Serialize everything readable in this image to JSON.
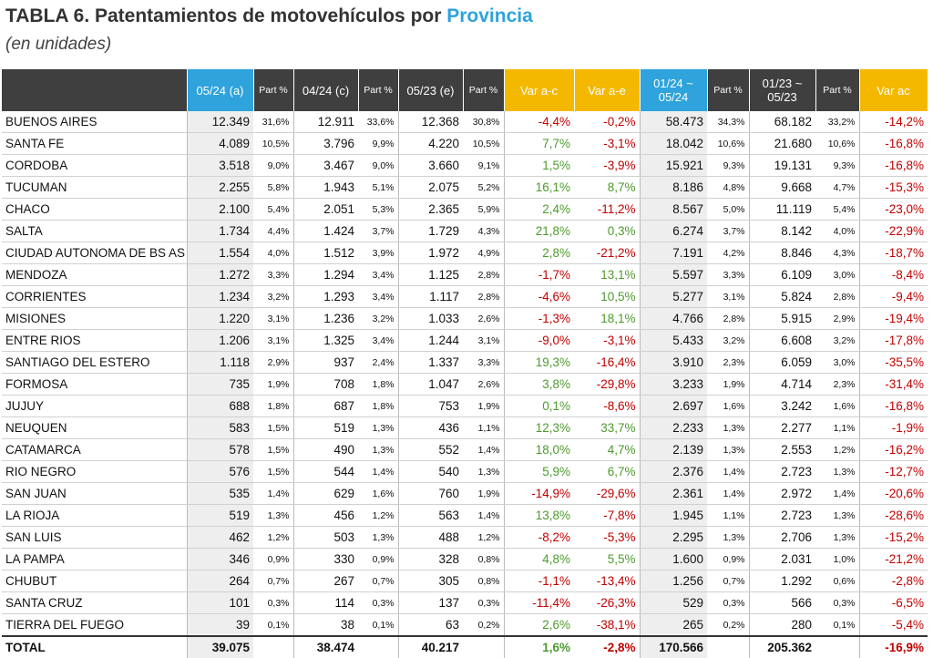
{
  "header": {
    "title": "TABLA 6. Patentamientos de motovehículos por ",
    "title_highlight": "Provincia",
    "subtitle": "(en unidades)"
  },
  "table": {
    "columns": [
      null,
      "05/24 (a)",
      "Part %",
      "04/24 (c)",
      "Part %",
      "05/23 (e)",
      "Part %",
      "Var a-c",
      "Var a-e",
      "01/24 ~ 05/24",
      "Part %",
      "01/23 ~ 05/23",
      "Part %",
      "Var ac"
    ],
    "rows": [
      [
        "BUENOS AIRES",
        "12.349",
        "31,6%",
        "12.911",
        "33,6%",
        "12.368",
        "30,8%",
        "-4,4%",
        "-0,2%",
        "58.473",
        "34,3%",
        "68.182",
        "33,2%",
        "-14,2%"
      ],
      [
        "SANTA FE",
        "4.089",
        "10,5%",
        "3.796",
        "9,9%",
        "4.220",
        "10,5%",
        "7,7%",
        "-3,1%",
        "18.042",
        "10,6%",
        "21.680",
        "10,6%",
        "-16,8%"
      ],
      [
        "CORDOBA",
        "3.518",
        "9,0%",
        "3.467",
        "9,0%",
        "3.660",
        "9,1%",
        "1,5%",
        "-3,9%",
        "15.921",
        "9,3%",
        "19.131",
        "9,3%",
        "-16,8%"
      ],
      [
        "TUCUMAN",
        "2.255",
        "5,8%",
        "1.943",
        "5,1%",
        "2.075",
        "5,2%",
        "16,1%",
        "8,7%",
        "8.186",
        "4,8%",
        "9.668",
        "4,7%",
        "-15,3%"
      ],
      [
        "CHACO",
        "2.100",
        "5,4%",
        "2.051",
        "5,3%",
        "2.365",
        "5,9%",
        "2,4%",
        "-11,2%",
        "8.567",
        "5,0%",
        "11.119",
        "5,4%",
        "-23,0%"
      ],
      [
        "SALTA",
        "1.734",
        "4,4%",
        "1.424",
        "3,7%",
        "1.729",
        "4,3%",
        "21,8%",
        "0,3%",
        "6.274",
        "3,7%",
        "8.142",
        "4,0%",
        "-22,9%"
      ],
      [
        "CIUDAD AUTONOMA DE BS AS",
        "1.554",
        "4,0%",
        "1.512",
        "3,9%",
        "1.972",
        "4,9%",
        "2,8%",
        "-21,2%",
        "7.191",
        "4,2%",
        "8.846",
        "4,3%",
        "-18,7%"
      ],
      [
        "MENDOZA",
        "1.272",
        "3,3%",
        "1.294",
        "3,4%",
        "1.125",
        "2,8%",
        "-1,7%",
        "13,1%",
        "5.597",
        "3,3%",
        "6.109",
        "3,0%",
        "-8,4%"
      ],
      [
        "CORRIENTES",
        "1.234",
        "3,2%",
        "1.293",
        "3,4%",
        "1.117",
        "2,8%",
        "-4,6%",
        "10,5%",
        "5.277",
        "3,1%",
        "5.824",
        "2,8%",
        "-9,4%"
      ],
      [
        "MISIONES",
        "1.220",
        "3,1%",
        "1.236",
        "3,2%",
        "1.033",
        "2,6%",
        "-1,3%",
        "18,1%",
        "4.766",
        "2,8%",
        "5.915",
        "2,9%",
        "-19,4%"
      ],
      [
        "ENTRE RIOS",
        "1.206",
        "3,1%",
        "1.325",
        "3,4%",
        "1.244",
        "3,1%",
        "-9,0%",
        "-3,1%",
        "5.433",
        "3,2%",
        "6.608",
        "3,2%",
        "-17,8%"
      ],
      [
        "SANTIAGO DEL ESTERO",
        "1.118",
        "2,9%",
        "937",
        "2,4%",
        "1.337",
        "3,3%",
        "19,3%",
        "-16,4%",
        "3.910",
        "2,3%",
        "6.059",
        "3,0%",
        "-35,5%"
      ],
      [
        "FORMOSA",
        "735",
        "1,9%",
        "708",
        "1,8%",
        "1.047",
        "2,6%",
        "3,8%",
        "-29,8%",
        "3.233",
        "1,9%",
        "4.714",
        "2,3%",
        "-31,4%"
      ],
      [
        "JUJUY",
        "688",
        "1,8%",
        "687",
        "1,8%",
        "753",
        "1,9%",
        "0,1%",
        "-8,6%",
        "2.697",
        "1,6%",
        "3.242",
        "1,6%",
        "-16,8%"
      ],
      [
        "NEUQUEN",
        "583",
        "1,5%",
        "519",
        "1,3%",
        "436",
        "1,1%",
        "12,3%",
        "33,7%",
        "2.233",
        "1,3%",
        "2.277",
        "1,1%",
        "-1,9%"
      ],
      [
        "CATAMARCA",
        "578",
        "1,5%",
        "490",
        "1,3%",
        "552",
        "1,4%",
        "18,0%",
        "4,7%",
        "2.139",
        "1,3%",
        "2.553",
        "1,2%",
        "-16,2%"
      ],
      [
        "RIO NEGRO",
        "576",
        "1,5%",
        "544",
        "1,4%",
        "540",
        "1,3%",
        "5,9%",
        "6,7%",
        "2.376",
        "1,4%",
        "2.723",
        "1,3%",
        "-12,7%"
      ],
      [
        "SAN JUAN",
        "535",
        "1,4%",
        "629",
        "1,6%",
        "760",
        "1,9%",
        "-14,9%",
        "-29,6%",
        "2.361",
        "1,4%",
        "2.972",
        "1,4%",
        "-20,6%"
      ],
      [
        "LA RIOJA",
        "519",
        "1,3%",
        "456",
        "1,2%",
        "563",
        "1,4%",
        "13,8%",
        "-7,8%",
        "1.945",
        "1,1%",
        "2.723",
        "1,3%",
        "-28,6%"
      ],
      [
        "SAN LUIS",
        "462",
        "1,2%",
        "503",
        "1,3%",
        "488",
        "1,2%",
        "-8,2%",
        "-5,3%",
        "2.295",
        "1,3%",
        "2.706",
        "1,3%",
        "-15,2%"
      ],
      [
        "LA PAMPA",
        "346",
        "0,9%",
        "330",
        "0,9%",
        "328",
        "0,8%",
        "4,8%",
        "5,5%",
        "1.600",
        "0,9%",
        "2.031",
        "1,0%",
        "-21,2%"
      ],
      [
        "CHUBUT",
        "264",
        "0,7%",
        "267",
        "0,7%",
        "305",
        "0,8%",
        "-1,1%",
        "-13,4%",
        "1.256",
        "0,7%",
        "1.292",
        "0,6%",
        "-2,8%"
      ],
      [
        "SANTA CRUZ",
        "101",
        "0,3%",
        "114",
        "0,3%",
        "137",
        "0,3%",
        "-11,4%",
        "-26,3%",
        "529",
        "0,3%",
        "566",
        "0,3%",
        "-6,5%"
      ],
      [
        "TIERRA DEL FUEGO",
        "39",
        "0,1%",
        "38",
        "0,1%",
        "63",
        "0,2%",
        "2,6%",
        "-38,1%",
        "265",
        "0,2%",
        "280",
        "0,1%",
        "-5,4%"
      ],
      [
        "TOTAL",
        "39.075",
        null,
        "38.474",
        null,
        "40.217",
        null,
        "1,6%",
        "-2,8%",
        "170.566",
        null,
        "205.362",
        null,
        "-16,9%"
      ]
    ]
  }
}
